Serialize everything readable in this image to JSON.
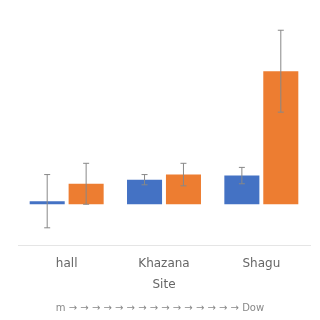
{
  "chart_data": {
    "type": "bar",
    "xlabel": "Site",
    "annotation": "m → → → → → → → → → → → → → → → Dow",
    "categories": [
      "hall",
      "Khazana",
      "Shagu"
    ],
    "series": [
      {
        "color": "#4472C4",
        "values": [
          1.5,
          12.0,
          14.0
        ],
        "errors": [
          13.0,
          2.5,
          4.0
        ]
      },
      {
        "color": "#ED7D31",
        "values": [
          10.0,
          14.5,
          65.0
        ],
        "errors": [
          10.0,
          5.5,
          20.0
        ]
      }
    ],
    "ylim": [
      -20,
      90
    ],
    "yticks": [
      -20,
      -10,
      0,
      10,
      20,
      30,
      40,
      50,
      60,
      70,
      80,
      90
    ],
    "grid": false,
    "tick_labels": "x"
  }
}
